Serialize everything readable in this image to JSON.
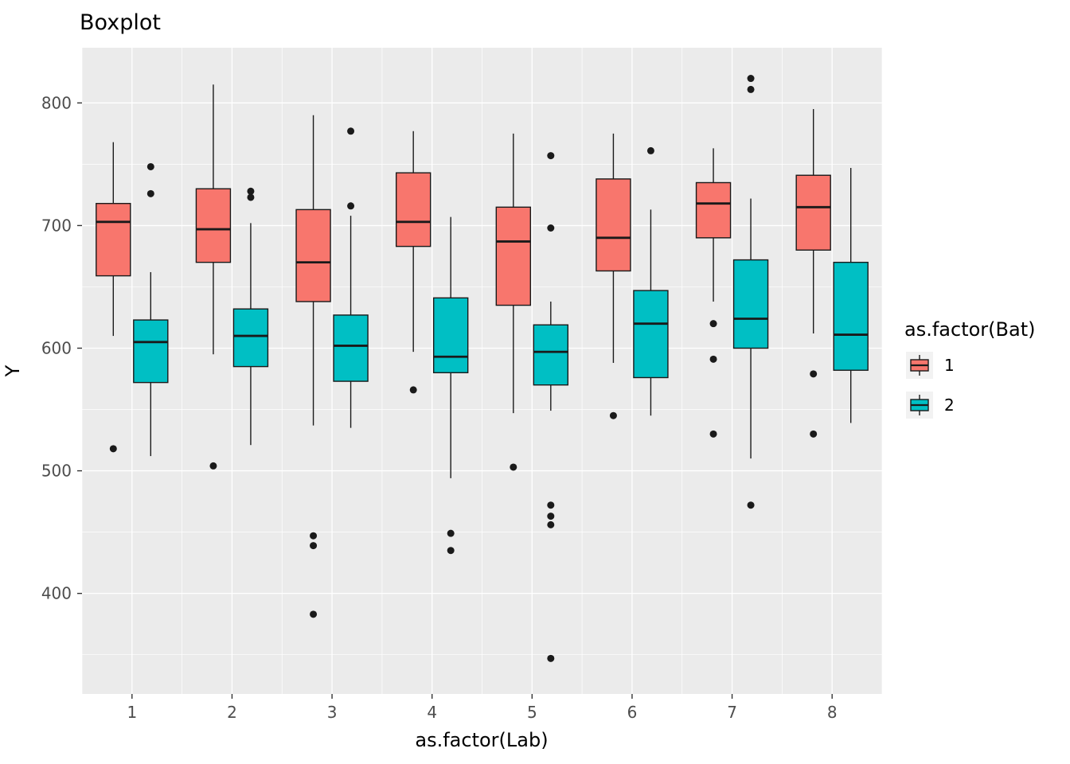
{
  "chart_data": {
    "type": "boxplot",
    "title": "Boxplot",
    "xlabel": "as.factor(Lab)",
    "ylabel": "Y",
    "legend_title": "as.factor(Bat)",
    "categories": [
      "1",
      "2",
      "3",
      "4",
      "5",
      "6",
      "7",
      "8"
    ],
    "yticks": [
      400,
      500,
      600,
      700,
      800
    ],
    "yticks_minor": [
      350,
      450,
      550,
      650,
      750
    ],
    "ylim": [
      318,
      845
    ],
    "grid": true,
    "legend_position": "right",
    "panel_bg": "#EBEBEB",
    "grid_color": "#FFFFFF",
    "box_stroke": "#1A1A1A",
    "outlier_color": "#1A1A1A",
    "tick_color": "#333333",
    "legend_key_bg": "#F2F2F2",
    "series": [
      {
        "name": "1",
        "color": "#F8766D",
        "boxes": [
          {
            "category": "1",
            "low": 610,
            "q1": 659,
            "median": 703,
            "q3": 718,
            "high": 768,
            "outliers": [
              518
            ]
          },
          {
            "category": "2",
            "low": 595,
            "q1": 670,
            "median": 697,
            "q3": 730,
            "high": 815,
            "outliers": [
              504
            ]
          },
          {
            "category": "3",
            "low": 537,
            "q1": 638,
            "median": 670,
            "q3": 713,
            "high": 790,
            "outliers": [
              447,
              439,
              383
            ]
          },
          {
            "category": "4",
            "low": 597,
            "q1": 683,
            "median": 703,
            "q3": 743,
            "high": 777,
            "outliers": [
              566
            ]
          },
          {
            "category": "5",
            "low": 547,
            "q1": 635,
            "median": 687,
            "q3": 715,
            "high": 775,
            "outliers": [
              503
            ]
          },
          {
            "category": "6",
            "low": 588,
            "q1": 663,
            "median": 690,
            "q3": 738,
            "high": 775,
            "outliers": [
              545
            ]
          },
          {
            "category": "7",
            "low": 638,
            "q1": 690,
            "median": 718,
            "q3": 735,
            "high": 763,
            "outliers": [
              620,
              591,
              530
            ]
          },
          {
            "category": "8",
            "low": 612,
            "q1": 680,
            "median": 715,
            "q3": 741,
            "high": 795,
            "outliers": [
              579,
              530
            ]
          }
        ]
      },
      {
        "name": "2",
        "color": "#00BFC4",
        "boxes": [
          {
            "category": "1",
            "low": 512,
            "q1": 572,
            "median": 605,
            "q3": 623,
            "high": 662,
            "outliers": [
              748,
              726
            ]
          },
          {
            "category": "2",
            "low": 521,
            "q1": 585,
            "median": 610,
            "q3": 632,
            "high": 702,
            "outliers": [
              728,
              723
            ]
          },
          {
            "category": "3",
            "low": 535,
            "q1": 573,
            "median": 602,
            "q3": 627,
            "high": 708,
            "outliers": [
              777,
              716
            ]
          },
          {
            "category": "4",
            "low": 494,
            "q1": 580,
            "median": 593,
            "q3": 641,
            "high": 707,
            "outliers": [
              449,
              435
            ]
          },
          {
            "category": "5",
            "low": 549,
            "q1": 570,
            "median": 597,
            "q3": 619,
            "high": 638,
            "outliers": [
              757,
              698,
              472,
              463,
              456,
              347
            ]
          },
          {
            "category": "6",
            "low": 545,
            "q1": 576,
            "median": 620,
            "q3": 647,
            "high": 713,
            "outliers": [
              761
            ]
          },
          {
            "category": "7",
            "low": 510,
            "q1": 600,
            "median": 624,
            "q3": 672,
            "high": 722,
            "outliers": [
              820,
              811,
              472
            ]
          },
          {
            "category": "8",
            "low": 539,
            "q1": 582,
            "median": 611,
            "q3": 670,
            "high": 747,
            "outliers": []
          }
        ]
      }
    ]
  }
}
